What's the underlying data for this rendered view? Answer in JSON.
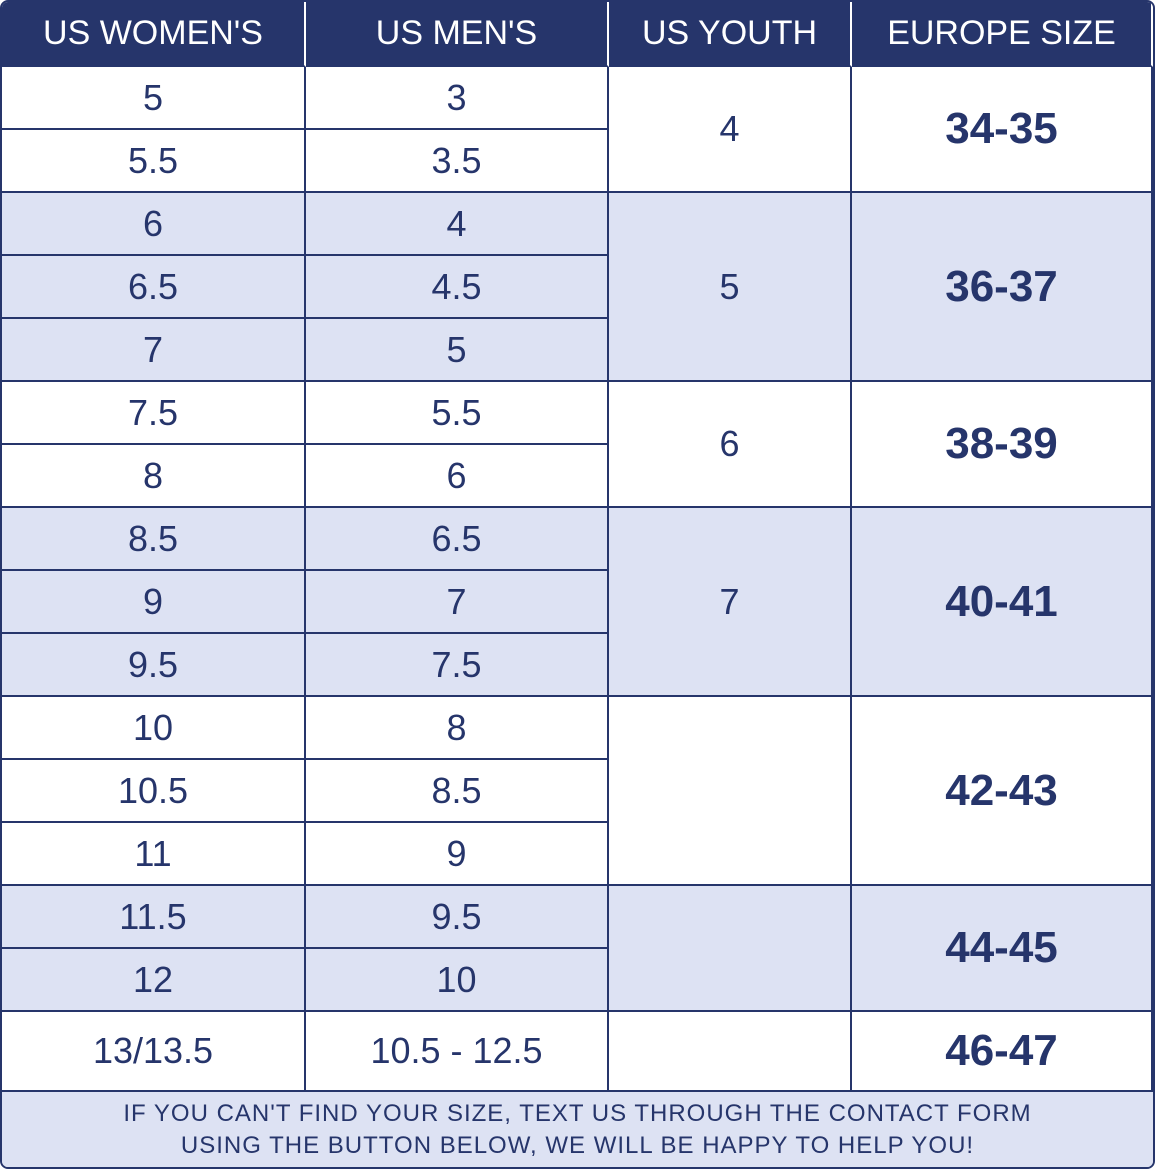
{
  "header": [
    "US WOMEN'S",
    "US MEN'S",
    "US YOUTH",
    "EUROPE SIZE"
  ],
  "groups": [
    {
      "rows": [
        [
          "5",
          "3"
        ],
        [
          "5.5",
          "3.5"
        ]
      ],
      "youth": "4",
      "europe": "34-35"
    },
    {
      "rows": [
        [
          "6",
          "4"
        ],
        [
          "6.5",
          "4.5"
        ],
        [
          "7",
          "5"
        ]
      ],
      "youth": "5",
      "europe": "36-37"
    },
    {
      "rows": [
        [
          "7.5",
          "5.5"
        ],
        [
          "8",
          "6"
        ]
      ],
      "youth": "6",
      "europe": "38-39"
    },
    {
      "rows": [
        [
          "8.5",
          "6.5"
        ],
        [
          "9",
          "7"
        ],
        [
          "9.5",
          "7.5"
        ]
      ],
      "youth": "7",
      "europe": "40-41"
    },
    {
      "rows": [
        [
          "10",
          "8"
        ],
        [
          "10.5",
          "8.5"
        ],
        [
          "11",
          "9"
        ]
      ],
      "europe": "42-43"
    },
    {
      "rows": [
        [
          "11.5",
          "9.5"
        ],
        [
          "12",
          "10"
        ]
      ],
      "europe": "44-45"
    },
    {
      "rows": [
        [
          "13/13.5",
          "10.5 - 12.5"
        ]
      ],
      "europe": "46-47"
    }
  ],
  "footer": [
    "IF YOU CAN'T FIND YOUR SIZE, TEXT US THROUGH THE CONTACT FORM",
    "USING THE BUTTON BELOW, WE WILL BE HAPPY TO HELP YOU!"
  ]
}
